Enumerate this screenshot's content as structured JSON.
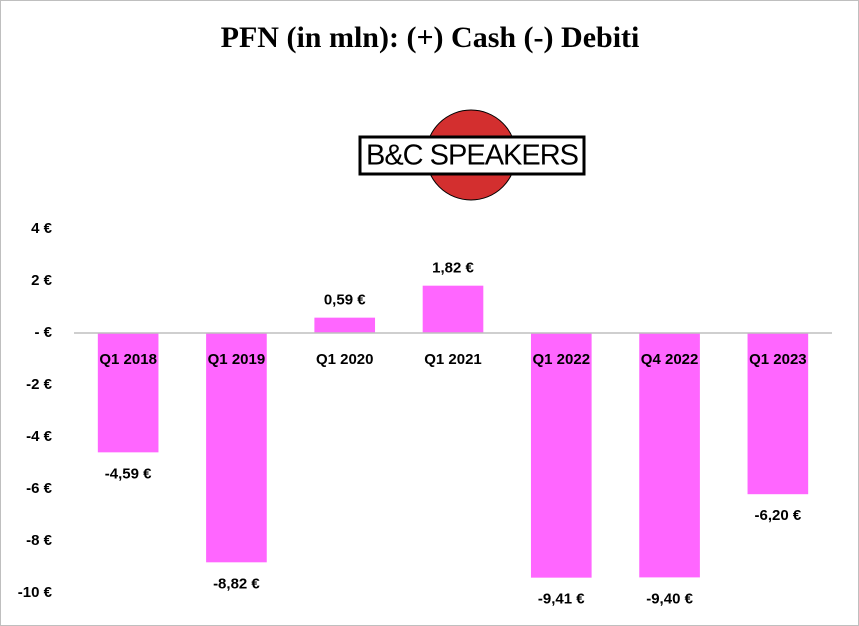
{
  "chart_data": {
    "type": "bar",
    "title": "PFN (in mln): (+) Cash (-) Debiti",
    "logo": "B&C SPEAKERS",
    "categories": [
      "Q1 2018",
      "Q1 2019",
      "Q1 2020",
      "Q1 2021",
      "Q1 2022",
      "Q4 2022",
      "Q1 2023"
    ],
    "values": [
      -4.59,
      -8.82,
      0.59,
      1.82,
      -9.41,
      -9.4,
      -6.2
    ],
    "value_labels": [
      "-4,59 €",
      "-8,82 €",
      "0,59 €",
      "1,82 €",
      "-9,41 €",
      "-9,40 €",
      "-6,20 €"
    ],
    "color": "#ff66ff",
    "ylim": [
      -10,
      4
    ],
    "yticks": [
      {
        "value": 4,
        "label": "4 €"
      },
      {
        "value": 2,
        "label": "2 €"
      },
      {
        "value": 0,
        "label": "- €"
      },
      {
        "value": -2,
        "label": "-2 €"
      },
      {
        "value": -4,
        "label": "-4 €"
      },
      {
        "value": -6,
        "label": "-6 €"
      },
      {
        "value": -8,
        "label": "-8 €"
      },
      {
        "value": -10,
        "label": "-10 €"
      }
    ],
    "grid": false
  }
}
